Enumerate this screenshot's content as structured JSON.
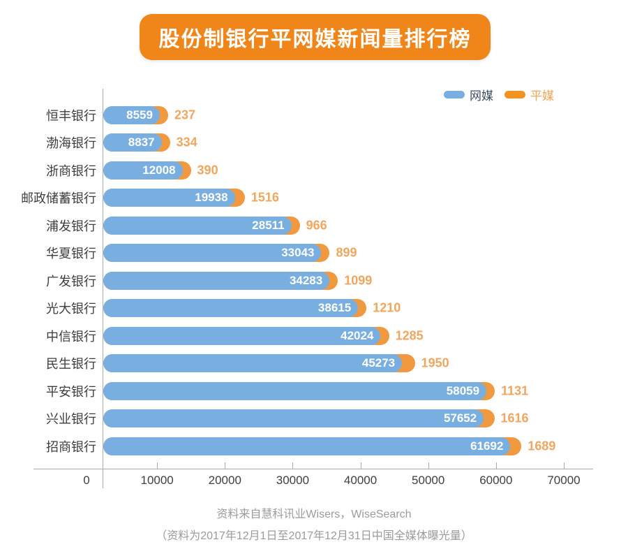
{
  "title": "股份制银行平网媒新闻量排行榜",
  "legend": {
    "items": [
      {
        "label": "网媒",
        "color": "#79AEE1"
      },
      {
        "label": "平媒",
        "color": "#F0941F"
      }
    ]
  },
  "chart_data": {
    "type": "bar",
    "orientation": "horizontal",
    "title": "股份制银行平网媒新闻量排行榜",
    "categories": [
      "恒丰银行",
      "渤海银行",
      "浙商银行",
      "邮政储蓄银行",
      "浦发银行",
      "华夏银行",
      "广发银行",
      "光大银行",
      "中信银行",
      "民生银行",
      "平安银行",
      "兴业银行",
      "招商银行"
    ],
    "series": [
      {
        "name": "网媒",
        "color": "#79AEE1",
        "values": [
          8559,
          8837,
          12008,
          19938,
          28511,
          33043,
          34283,
          38615,
          42024,
          45273,
          58059,
          57652,
          61692
        ]
      },
      {
        "name": "平媒",
        "color": "#F0993E",
        "values": [
          237,
          334,
          390,
          1516,
          966,
          899,
          1099,
          1210,
          1285,
          1950,
          1131,
          1616,
          1689
        ]
      }
    ],
    "xlim": [
      0,
      70000
    ],
    "x_ticks": [
      "0",
      "10000",
      "20000",
      "30000",
      "40000",
      "50000",
      "60000",
      "70000"
    ],
    "legend_position": "top-right",
    "grid": false,
    "value_labels": "net values white inside blue bars, print values orange outside"
  },
  "footer": {
    "line1": "资料来自慧科讯业Wisers，WiseSearch",
    "line2": "（资料为2017年12月1日至2017年12月31日中国全媒体曝光量）"
  },
  "colors": {
    "banner": "#F08519",
    "bar_net": "#79AEE1",
    "bar_print": "#F0993E",
    "value_print_text": "#F0A65F",
    "axis_line": "#ABABAB",
    "bank_label_text": "#3D3D3D",
    "legend_net_text": "#3D4D61",
    "legend_print_text": "#F2A558",
    "footer_text": "#9B9B9B"
  }
}
